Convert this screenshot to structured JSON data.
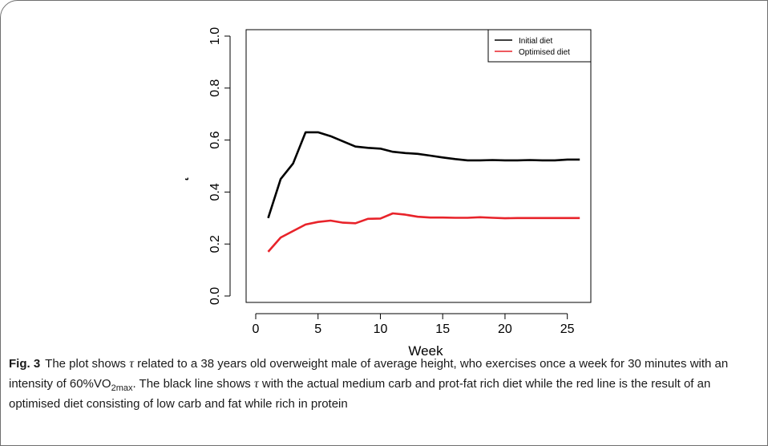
{
  "chart_data": {
    "type": "line",
    "xlabel": "Week",
    "ylabel": "τ",
    "xlim": [
      0,
      26.5
    ],
    "ylim": [
      0.0,
      1.0
    ],
    "xticks": [
      0,
      5,
      10,
      15,
      20,
      25
    ],
    "yticks": [
      0.0,
      0.2,
      0.4,
      0.6,
      0.8,
      1.0
    ],
    "x": [
      1,
      2,
      3,
      4,
      5,
      6,
      7,
      8,
      9,
      10,
      11,
      12,
      13,
      14,
      15,
      16,
      17,
      18,
      19,
      20,
      21,
      22,
      23,
      24,
      25,
      26
    ],
    "series": [
      {
        "name": "Initial diet",
        "color": "#000000",
        "values": [
          0.3,
          0.45,
          0.51,
          0.63,
          0.63,
          0.615,
          0.595,
          0.575,
          0.57,
          0.567,
          0.555,
          0.55,
          0.547,
          0.54,
          0.533,
          0.527,
          0.522,
          0.522,
          0.523,
          0.522,
          0.522,
          0.523,
          0.522,
          0.522,
          0.525,
          0.525
        ]
      },
      {
        "name": "Optimised diet",
        "color": "#e8232a",
        "values": [
          0.17,
          0.225,
          0.25,
          0.275,
          0.285,
          0.29,
          0.282,
          0.28,
          0.297,
          0.298,
          0.318,
          0.313,
          0.305,
          0.302,
          0.302,
          0.301,
          0.301,
          0.303,
          0.301,
          0.299,
          0.3,
          0.3,
          0.3,
          0.3,
          0.3,
          0.3
        ]
      }
    ],
    "legend_position": "top-right"
  },
  "caption": {
    "label": "Fig. 3",
    "part1": "The plot shows ",
    "tau": "τ",
    "part2": " related to a 38 years old overweight male of average height, who exercises once a week for 30 minutes with an intensity of 60%VO",
    "sub": "2max",
    "part3": ". The black line shows ",
    "tau2": "τ",
    "part4": " with the actual medium carb and prot-fat rich diet while the red line is the result of an optimised diet consisting of low carb and fat while rich in protein"
  }
}
